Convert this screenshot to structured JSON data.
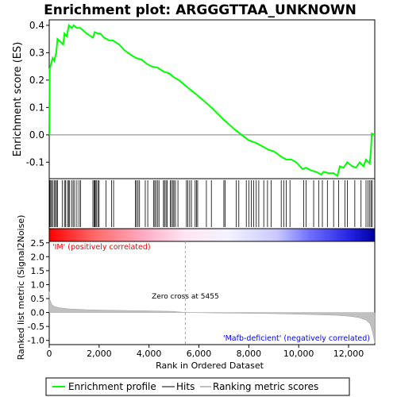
{
  "chart_data": {
    "type": "line",
    "title": "Enrichment plot: ARGGGTTAA_UNKNOWN",
    "panels": {
      "enrichment": {
        "ylabel": "Enrichment score (ES)",
        "ylim": [
          -0.16,
          0.42
        ],
        "yticks": [
          "-0.1",
          "0.0",
          "0.1",
          "0.2",
          "0.3",
          "0.4"
        ],
        "ytick_values": [
          -0.1,
          0.0,
          0.1,
          0.2,
          0.3,
          0.4
        ],
        "series_color": "#00ff00",
        "points": [
          [
            0,
            0.0
          ],
          [
            20,
            0.24
          ],
          [
            130,
            0.28
          ],
          [
            200,
            0.27
          ],
          [
            280,
            0.3
          ],
          [
            330,
            0.35
          ],
          [
            560,
            0.33
          ],
          [
            610,
            0.37
          ],
          [
            700,
            0.36
          ],
          [
            790,
            0.4
          ],
          [
            900,
            0.39
          ],
          [
            980,
            0.4
          ],
          [
            1100,
            0.39
          ],
          [
            1250,
            0.39
          ],
          [
            1500,
            0.37
          ],
          [
            1750,
            0.355
          ],
          [
            1820,
            0.375
          ],
          [
            1950,
            0.37
          ],
          [
            2050,
            0.37
          ],
          [
            2200,
            0.355
          ],
          [
            2400,
            0.345
          ],
          [
            2550,
            0.345
          ],
          [
            2800,
            0.33
          ],
          [
            3000,
            0.31
          ],
          [
            3300,
            0.29
          ],
          [
            3500,
            0.28
          ],
          [
            3700,
            0.275
          ],
          [
            3900,
            0.26
          ],
          [
            4100,
            0.25
          ],
          [
            4350,
            0.245
          ],
          [
            4600,
            0.23
          ],
          [
            4800,
            0.225
          ],
          [
            5000,
            0.21
          ],
          [
            5200,
            0.2
          ],
          [
            5455,
            0.18
          ],
          [
            6000,
            0.14
          ],
          [
            6500,
            0.1
          ],
          [
            7000,
            0.055
          ],
          [
            7500,
            0.015
          ],
          [
            8000,
            -0.02
          ],
          [
            8300,
            -0.03
          ],
          [
            8600,
            -0.045
          ],
          [
            8800,
            -0.055
          ],
          [
            9000,
            -0.06
          ],
          [
            9300,
            -0.08
          ],
          [
            9500,
            -0.09
          ],
          [
            9700,
            -0.09
          ],
          [
            9900,
            -0.1
          ],
          [
            10150,
            -0.125
          ],
          [
            10300,
            -0.12
          ],
          [
            10500,
            -0.13
          ],
          [
            10700,
            -0.135
          ],
          [
            10900,
            -0.145
          ],
          [
            11000,
            -0.135
          ],
          [
            11200,
            -0.14
          ],
          [
            11400,
            -0.14
          ],
          [
            11550,
            -0.15
          ],
          [
            11650,
            -0.115
          ],
          [
            11800,
            -0.12
          ],
          [
            11950,
            -0.1
          ],
          [
            12150,
            -0.115
          ],
          [
            12300,
            -0.12
          ],
          [
            12450,
            -0.1
          ],
          [
            12600,
            -0.115
          ],
          [
            12700,
            -0.09
          ],
          [
            12850,
            -0.105
          ],
          [
            12900,
            -0.05
          ],
          [
            12930,
            0.005
          ],
          [
            13050,
            0.0
          ]
        ]
      },
      "hits": {
        "positions": [
          20,
          60,
          90,
          140,
          200,
          250,
          290,
          330,
          520,
          610,
          650,
          730,
          780,
          820,
          900,
          960,
          1020,
          1110,
          1200,
          1260,
          1750,
          1800,
          1830,
          1850,
          1900,
          1960,
          2000,
          2280,
          2500,
          2580,
          3450,
          3500,
          3560,
          3620,
          3850,
          3950,
          4180,
          4230,
          4280,
          4350,
          4400,
          4580,
          4620,
          4680,
          4730,
          4850,
          4900,
          4960,
          5000,
          5060,
          5160,
          5500,
          5550,
          5630,
          5700,
          5850,
          5900,
          5950,
          6300,
          6500,
          7000,
          7050,
          7500,
          7600,
          7900,
          8000,
          8100,
          8200,
          8300,
          8400,
          8600,
          8750,
          8900,
          9300,
          9400,
          9500,
          9650,
          10200,
          10300,
          10600,
          10800,
          10950,
          11150,
          11400,
          11600,
          11850,
          11950,
          12250,
          12500,
          12700,
          12780,
          12850,
          12900,
          12950
        ]
      },
      "ranked_metric": {
        "ylabel": "Ranked list metric (Signal2Noise)",
        "ylim": [
          -1.15,
          2.55
        ],
        "yticks": [
          "-1.0",
          "-0.5",
          "0.0",
          "0.5",
          "1.0",
          "1.5",
          "2.0",
          "2.5"
        ],
        "ytick_values": [
          -1.0,
          -0.5,
          0.0,
          0.5,
          1.0,
          1.5,
          2.0,
          2.5
        ],
        "fill_color": "#c0c0c0",
        "profile": [
          [
            0,
            0.75
          ],
          [
            30,
            0.45
          ],
          [
            100,
            0.3
          ],
          [
            200,
            0.22
          ],
          [
            400,
            0.17
          ],
          [
            800,
            0.13
          ],
          [
            1500,
            0.1
          ],
          [
            2500,
            0.08
          ],
          [
            4000,
            0.06
          ],
          [
            5000,
            0.04
          ],
          [
            5455,
            0.0
          ],
          [
            7000,
            -0.02
          ],
          [
            9000,
            -0.04
          ],
          [
            10500,
            -0.07
          ],
          [
            11500,
            -0.1
          ],
          [
            12000,
            -0.13
          ],
          [
            12400,
            -0.18
          ],
          [
            12700,
            -0.27
          ],
          [
            12850,
            -0.4
          ],
          [
            12920,
            -0.55
          ],
          [
            13000,
            -0.85
          ],
          [
            13050,
            -1.1
          ]
        ],
        "zero_cross_label": "Zero cross at 5455",
        "zero_cross": 5455,
        "positive_label": "'IM' (positively correlated)",
        "negative_label": "'Mafb-deficient' (negatively correlated)",
        "positive_label_color": "#ff0000",
        "negative_label_color": "#0000ff"
      }
    },
    "xlabel": "Rank in Ordered Dataset",
    "xlim": [
      0,
      13050
    ],
    "xticks": [
      "0",
      "2,000",
      "4,000",
      "6,000",
      "8,000",
      "10,000",
      "12,000"
    ],
    "xtick_values": [
      0,
      2000,
      4000,
      6000,
      8000,
      10000,
      12000
    ],
    "legend": {
      "placement": "bottom",
      "entries": [
        {
          "label": "Enrichment profile",
          "color": "#00ff00"
        },
        {
          "label": "Hits",
          "color": "#000000"
        },
        {
          "label": "Ranking metric scores",
          "color": "#c0c0c0"
        }
      ]
    }
  }
}
